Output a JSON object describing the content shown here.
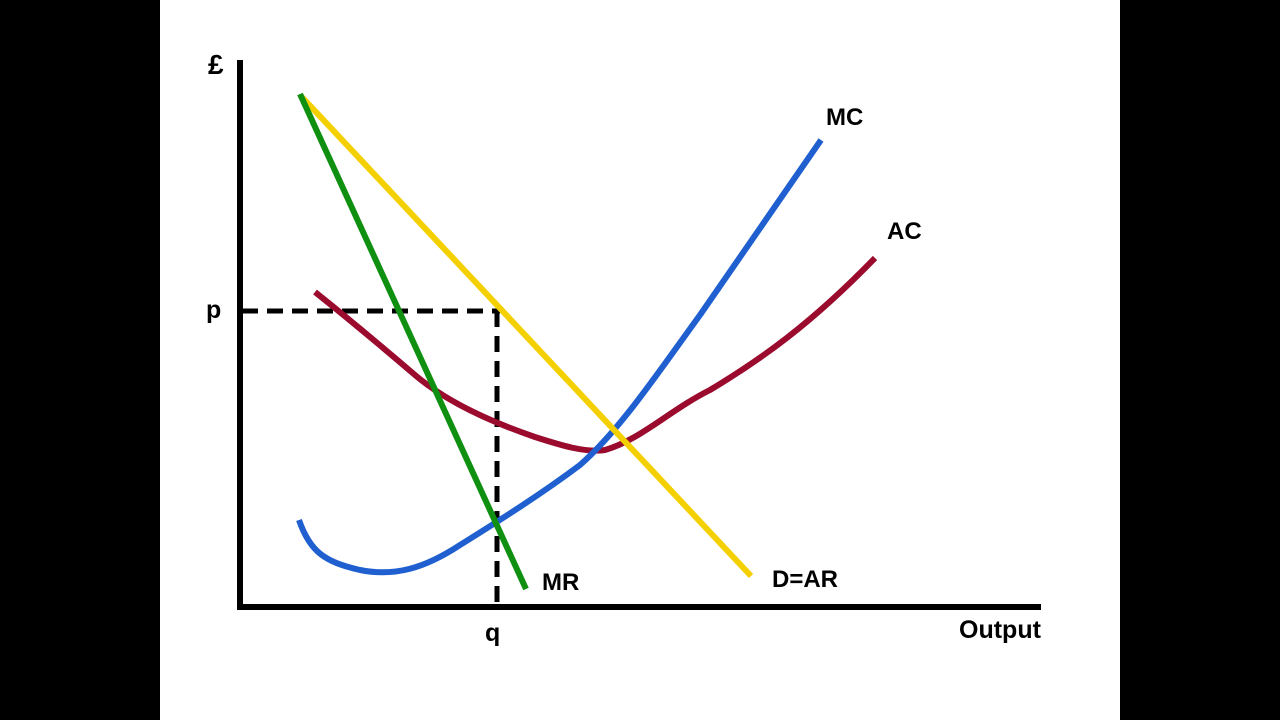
{
  "diagram": {
    "axes": {
      "y_label": "£",
      "x_label": "Output"
    },
    "curves": [
      {
        "id": "mc",
        "label": "MC",
        "color": "#1f5fd0"
      },
      {
        "id": "ac",
        "label": "AC",
        "color": "#9a0b2e"
      },
      {
        "id": "mr",
        "label": "MR",
        "color": "#109010"
      },
      {
        "id": "ar",
        "label": "D=AR",
        "color": "#f5d000"
      }
    ],
    "markers": {
      "price_label": "p",
      "quantity_label": "q"
    },
    "colors": {
      "frame": "#000000",
      "panel": "#ffffff",
      "axis": "#000000",
      "dashed_guides": "#000000"
    }
  }
}
